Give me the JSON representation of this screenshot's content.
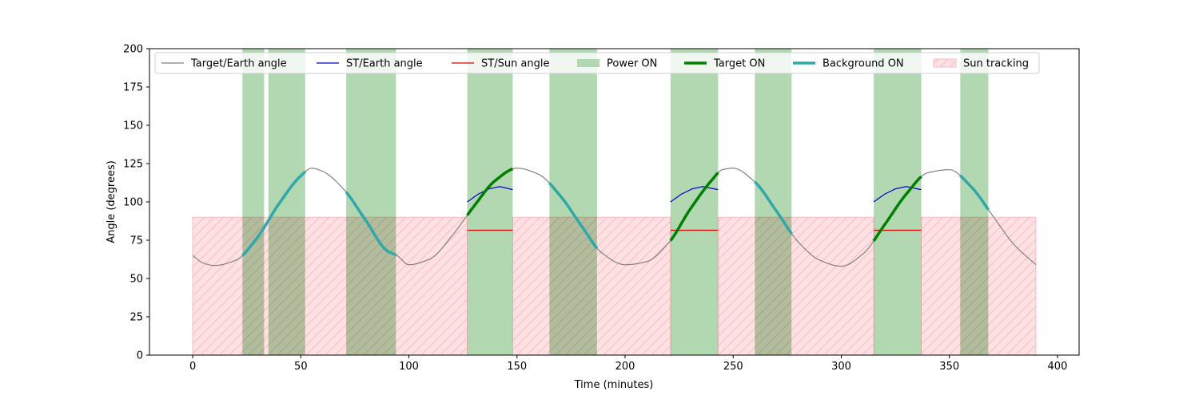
{
  "chart_data": {
    "type": "line",
    "title": "",
    "xlabel": "Time (minutes)",
    "ylabel": "Angle (degrees)",
    "xlim": [
      -20,
      410
    ],
    "ylim": [
      0,
      200
    ],
    "xticks": [
      0,
      50,
      100,
      150,
      200,
      250,
      300,
      350,
      400
    ],
    "yticks": [
      0,
      25,
      50,
      75,
      100,
      125,
      150,
      175,
      200
    ],
    "grid": false,
    "legend_placement": "top",
    "colors": {
      "target_earth": "#808080",
      "st_earth": "#0000cc",
      "st_sun": "#dd0000",
      "power_on": "#b2d8b2",
      "target_on": "#008000",
      "background_on": "#30a8a8",
      "sun_tracking_fill": "#ffe0e3",
      "sun_tracking_hatch": "#f7bcc3"
    },
    "series": [
      {
        "name": "Target/Earth angle",
        "orbit_period": 94.5,
        "x": [
          0,
          5,
          10,
          20,
          30,
          40,
          50,
          55,
          60,
          70,
          80,
          90,
          94.5,
          100,
          110,
          120,
          130,
          140,
          150,
          160,
          170,
          180,
          189,
          200,
          210,
          220,
          230,
          240,
          245,
          250,
          260,
          270,
          280,
          290,
          300,
          310,
          320,
          330,
          340,
          350,
          360,
          370,
          380,
          390
        ],
        "y": [
          65,
          60,
          58.5,
          62,
          77,
          99,
          117,
          122,
          120,
          108,
          88,
          68,
          65,
          59,
          63,
          78,
          97,
          114,
          122,
          118,
          104,
          84,
          67,
          59,
          61,
          73,
          95,
          114,
          121,
          122,
          113,
          94,
          74,
          62,
          58,
          66,
          85,
          105,
          119,
          121,
          110,
          91,
          72,
          59
        ]
      },
      {
        "name": "ST/Earth angle",
        "segments": [
          {
            "x": [
              127,
              132,
              137,
              142,
              148
            ],
            "y": [
              100,
              105,
              108.5,
              110,
              108
            ]
          },
          {
            "x": [
              221,
              226,
              231,
              236,
              243
            ],
            "y": [
              100,
              105,
              108.5,
              110,
              108
            ]
          },
          {
            "x": [
              315,
              320,
              325,
              330,
              337
            ],
            "y": [
              100,
              105,
              108.5,
              110,
              108
            ]
          }
        ]
      },
      {
        "name": "ST/Sun angle",
        "segments": [
          {
            "x": [
              127,
              148
            ],
            "y": [
              81.5,
              81.5
            ]
          },
          {
            "x": [
              221,
              243
            ],
            "y": [
              81.5,
              81.5
            ]
          },
          {
            "x": [
              315,
              337
            ],
            "y": [
              81.5,
              81.5
            ]
          }
        ]
      },
      {
        "name": "Power ON",
        "intervals": [
          [
            23,
            33
          ],
          [
            35,
            52
          ],
          [
            71,
            94
          ],
          [
            127,
            148
          ],
          [
            165,
            187
          ],
          [
            221,
            243
          ],
          [
            260,
            277
          ],
          [
            315,
            337
          ],
          [
            355,
            368
          ]
        ]
      },
      {
        "name": "Target ON",
        "intervals": [
          [
            127,
            148
          ],
          [
            221,
            243
          ],
          [
            315,
            337
          ]
        ]
      },
      {
        "name": "Background ON",
        "intervals": [
          [
            23,
            52
          ],
          [
            71,
            94
          ],
          [
            165,
            187
          ],
          [
            260,
            277
          ],
          [
            355,
            368
          ]
        ]
      },
      {
        "name": "Sun tracking",
        "intervals": [
          [
            0,
            127
          ],
          [
            148,
            221
          ],
          [
            243,
            315
          ],
          [
            337,
            390
          ]
        ],
        "angle": 90
      }
    ]
  }
}
